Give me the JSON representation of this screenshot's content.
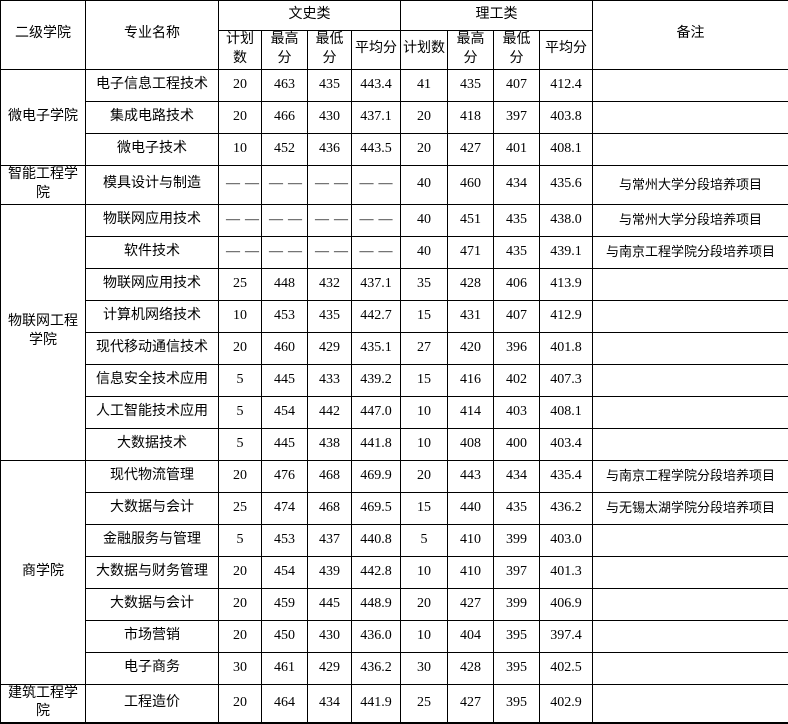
{
  "table": {
    "headers": {
      "college": "二级学院",
      "major": "专业名称",
      "liberal_arts": "文史类",
      "science": "理工类",
      "remark": "备注",
      "sub": [
        "计划数",
        "最高分",
        "最低分",
        "平均分"
      ]
    },
    "groups": [
      {
        "college": "微电子学院",
        "rows": [
          {
            "major": "电子信息工程技术",
            "wenshi": [
              "20",
              "463",
              "435",
              "443.4"
            ],
            "ligong": [
              "41",
              "435",
              "407",
              "412.4"
            ],
            "remark": ""
          },
          {
            "major": "集成电路技术",
            "wenshi": [
              "20",
              "466",
              "430",
              "437.1"
            ],
            "ligong": [
              "20",
              "418",
              "397",
              "403.8"
            ],
            "remark": ""
          },
          {
            "major": "微电子技术",
            "wenshi": [
              "10",
              "452",
              "436",
              "443.5"
            ],
            "ligong": [
              "20",
              "427",
              "401",
              "408.1"
            ],
            "remark": ""
          }
        ]
      },
      {
        "college": "智能工程学院",
        "rows": [
          {
            "major": "模具设计与制造",
            "wenshi": [
              "——",
              "——",
              "——",
              "——"
            ],
            "ligong": [
              "40",
              "460",
              "434",
              "435.6"
            ],
            "remark": "与常州大学分段培养项目"
          }
        ]
      },
      {
        "college": "物联网工程学院",
        "rows": [
          {
            "major": "物联网应用技术",
            "wenshi": [
              "——",
              "——",
              "——",
              "——"
            ],
            "ligong": [
              "40",
              "451",
              "435",
              "438.0"
            ],
            "remark": "与常州大学分段培养项目"
          },
          {
            "major": "软件技术",
            "wenshi": [
              "——",
              "——",
              "——",
              "——"
            ],
            "ligong": [
              "40",
              "471",
              "435",
              "439.1"
            ],
            "remark": "与南京工程学院分段培养项目"
          },
          {
            "major": "物联网应用技术",
            "wenshi": [
              "25",
              "448",
              "432",
              "437.1"
            ],
            "ligong": [
              "35",
              "428",
              "406",
              "413.9"
            ],
            "remark": ""
          },
          {
            "major": "计算机网络技术",
            "wenshi": [
              "10",
              "453",
              "435",
              "442.7"
            ],
            "ligong": [
              "15",
              "431",
              "407",
              "412.9"
            ],
            "remark": ""
          },
          {
            "major": "现代移动通信技术",
            "wenshi": [
              "20",
              "460",
              "429",
              "435.1"
            ],
            "ligong": [
              "27",
              "420",
              "396",
              "401.8"
            ],
            "remark": ""
          },
          {
            "major": "信息安全技术应用",
            "wenshi": [
              "5",
              "445",
              "433",
              "439.2"
            ],
            "ligong": [
              "15",
              "416",
              "402",
              "407.3"
            ],
            "remark": ""
          },
          {
            "major": "人工智能技术应用",
            "wenshi": [
              "5",
              "454",
              "442",
              "447.0"
            ],
            "ligong": [
              "10",
              "414",
              "403",
              "408.1"
            ],
            "remark": ""
          },
          {
            "major": "大数据技术",
            "wenshi": [
              "5",
              "445",
              "438",
              "441.8"
            ],
            "ligong": [
              "10",
              "408",
              "400",
              "403.4"
            ],
            "remark": ""
          }
        ]
      },
      {
        "college": "商学院",
        "rows": [
          {
            "major": "现代物流管理",
            "wenshi": [
              "20",
              "476",
              "468",
              "469.9"
            ],
            "ligong": [
              "20",
              "443",
              "434",
              "435.4"
            ],
            "remark": "与南京工程学院分段培养项目"
          },
          {
            "major": "大数据与会计",
            "wenshi": [
              "25",
              "474",
              "468",
              "469.5"
            ],
            "ligong": [
              "15",
              "440",
              "435",
              "436.2"
            ],
            "remark": "与无锡太湖学院分段培养项目"
          },
          {
            "major": "金融服务与管理",
            "wenshi": [
              "5",
              "453",
              "437",
              "440.8"
            ],
            "ligong": [
              "5",
              "410",
              "399",
              "403.0"
            ],
            "remark": ""
          },
          {
            "major": "大数据与财务管理",
            "wenshi": [
              "20",
              "454",
              "439",
              "442.8"
            ],
            "ligong": [
              "10",
              "410",
              "397",
              "401.3"
            ],
            "remark": ""
          },
          {
            "major": "大数据与会计",
            "wenshi": [
              "20",
              "459",
              "445",
              "448.9"
            ],
            "ligong": [
              "20",
              "427",
              "399",
              "406.9"
            ],
            "remark": ""
          },
          {
            "major": "市场营销",
            "wenshi": [
              "20",
              "450",
              "430",
              "436.0"
            ],
            "ligong": [
              "10",
              "404",
              "395",
              "397.4"
            ],
            "remark": ""
          },
          {
            "major": "电子商务",
            "wenshi": [
              "30",
              "461",
              "429",
              "436.2"
            ],
            "ligong": [
              "30",
              "428",
              "395",
              "402.5"
            ],
            "remark": ""
          }
        ]
      },
      {
        "college": "建筑工程学院",
        "rows": [
          {
            "major": "工程造价",
            "wenshi": [
              "20",
              "464",
              "434",
              "441.9"
            ],
            "ligong": [
              "25",
              "427",
              "395",
              "402.9"
            ],
            "remark": ""
          }
        ]
      }
    ]
  }
}
